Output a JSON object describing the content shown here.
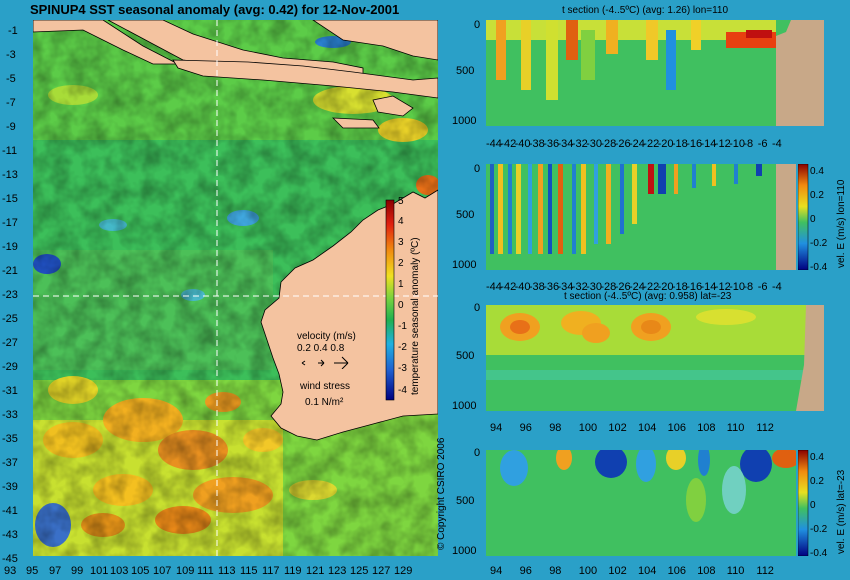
{
  "map": {
    "title": "SPINUP4 SST seasonal anomaly (avg: 0.42) for 12-Nov-2001",
    "lat_labels": [
      "-1",
      "-3",
      "-5",
      "-7",
      "-9",
      "-11",
      "-13",
      "-15",
      "-17",
      "-19",
      "-21",
      "-23",
      "-25",
      "-27",
      "-29",
      "-31",
      "-33",
      "-35",
      "-37",
      "-39",
      "-41",
      "-43",
      "-45"
    ],
    "lon_labels": [
      "93",
      "95",
      "97",
      "99",
      "101",
      "103",
      "105",
      "107",
      "109",
      "111",
      "113",
      "115",
      "117",
      "119",
      "121",
      "123",
      "125",
      "127",
      "129"
    ],
    "colorbar": {
      "ticks": [
        "5",
        "4",
        "3",
        "2",
        "1",
        "0",
        "-1",
        "-2",
        "-3",
        "-4"
      ],
      "label": "temperature seasonal anomaly (ºC)"
    },
    "velocity_label": "velocity (m/s)",
    "velocity_scale": "0.2 0.4 0.8",
    "wind_label": "wind stress",
    "wind_value": "0.1 N/m²",
    "section_lon": 110,
    "section_lat": -23,
    "colors": {
      "ocean": "#2aa0c8",
      "land": "#f4c3a0",
      "land_section": "#c8a888"
    }
  },
  "copyright": "© Copyright CSIRO 2006",
  "panels": [
    {
      "title": "t section (-4..5ºC) (avg: 1.26) lon=110",
      "y_labels": [
        "0",
        "500",
        "1000"
      ],
      "x_labels": [
        "-44",
        "-42",
        "-40",
        "-38",
        "-36",
        "-34",
        "-32",
        "-30",
        "-28",
        "-26",
        "-24",
        "-22",
        "-20",
        "-18",
        "-16",
        "-14",
        "-12",
        "-10",
        "-8",
        "-6",
        "-4"
      ]
    },
    {
      "title": "",
      "y_labels": [
        "0",
        "500",
        "1000"
      ],
      "x_labels": [
        "-44",
        "-42",
        "-40",
        "-38",
        "-36",
        "-34",
        "-32",
        "-30",
        "-28",
        "-26",
        "-24",
        "-22",
        "-20",
        "-18",
        "-16",
        "-14",
        "-12",
        "-10",
        "-8",
        "-6",
        "-4"
      ],
      "colorbar_ticks": [
        "0.4",
        "0.2",
        "0",
        "-0.2",
        "-0.4"
      ],
      "colorbar_label": "vel. E (m/s) lon=110"
    },
    {
      "title": "t section (-4..5ºC) (avg: 0.958) lat=-23",
      "y_labels": [
        "0",
        "500",
        "1000"
      ],
      "x_labels": [
        "94",
        "96",
        "98",
        "100",
        "102",
        "104",
        "106",
        "108",
        "110",
        "112"
      ]
    },
    {
      "title": "",
      "y_labels": [
        "0",
        "500",
        "1000"
      ],
      "x_labels": [
        "94",
        "96",
        "98",
        "100",
        "102",
        "104",
        "106",
        "108",
        "110",
        "112"
      ],
      "colorbar_ticks": [
        "0.4",
        "0.2",
        "0",
        "-0.2",
        "-0.4"
      ],
      "colorbar_label": "vel. E (m/s) lat=-23"
    }
  ]
}
